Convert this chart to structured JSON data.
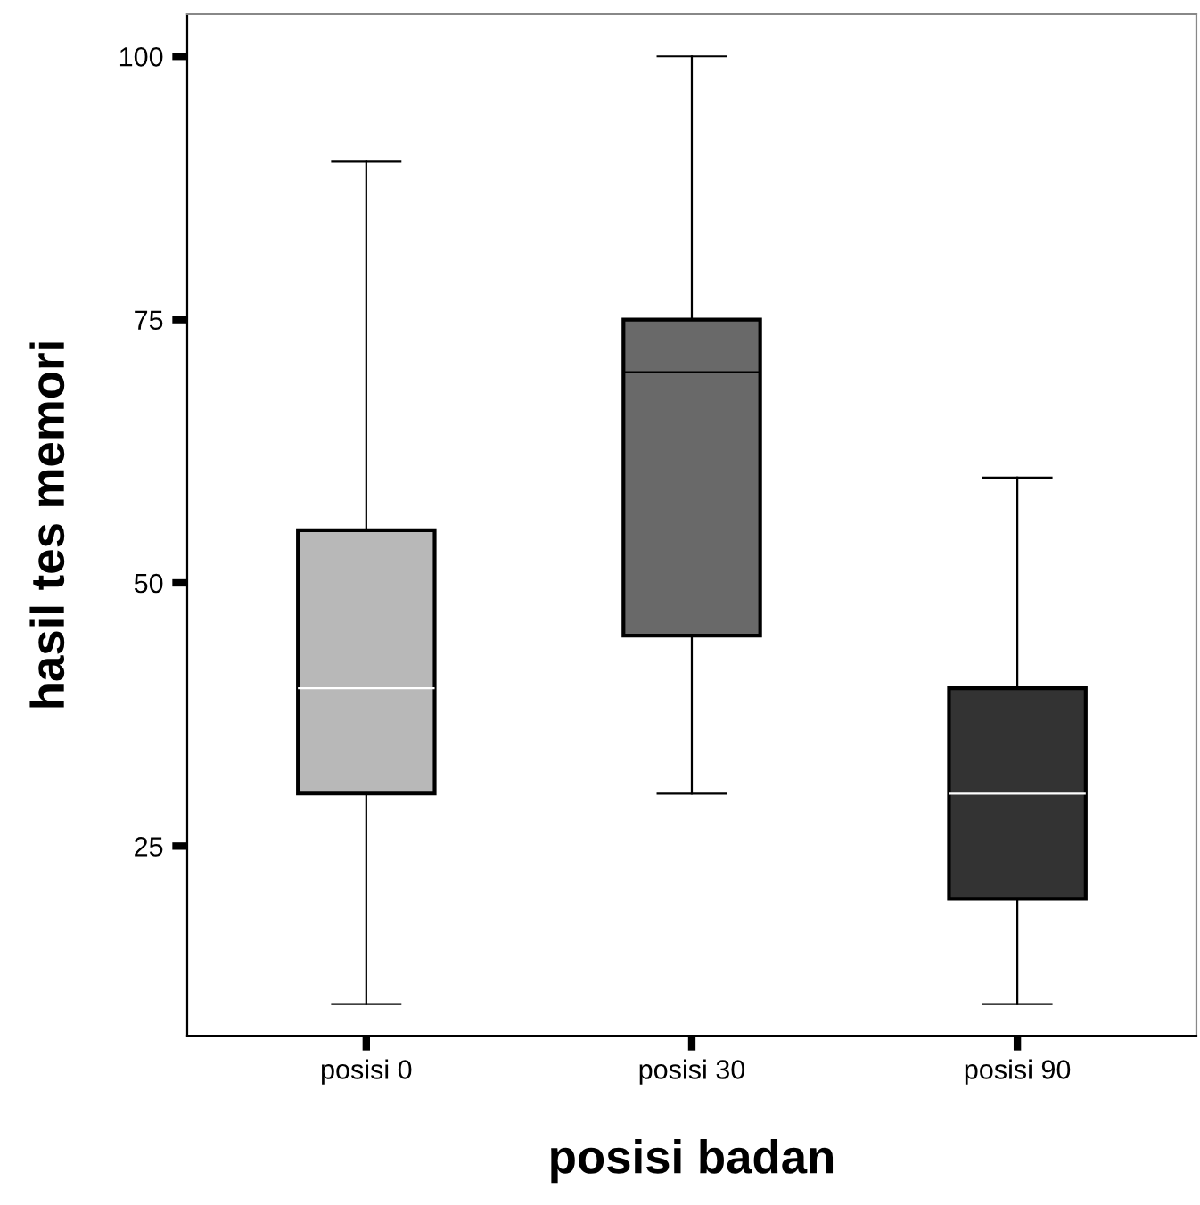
{
  "chart_data": {
    "type": "box",
    "xlabel": "posisi badan",
    "ylabel": "hasil tes memori",
    "categories": [
      "posisi 0",
      "posisi 30",
      "posisi 90"
    ],
    "colors": [
      "#b8b8b8",
      "#696969",
      "#333333"
    ],
    "boxes": [
      {
        "low": 10,
        "q1": 30,
        "median": 40,
        "q3": 55,
        "high": 90
      },
      {
        "low": 30,
        "q1": 45,
        "median": 70,
        "q3": 75,
        "high": 100
      },
      {
        "low": 10,
        "q1": 20,
        "median": 30,
        "q3": 40,
        "high": 60
      }
    ],
    "ylim": [
      7,
      104
    ],
    "yticks": [
      25,
      50,
      75,
      100
    ],
    "grid": false
  }
}
